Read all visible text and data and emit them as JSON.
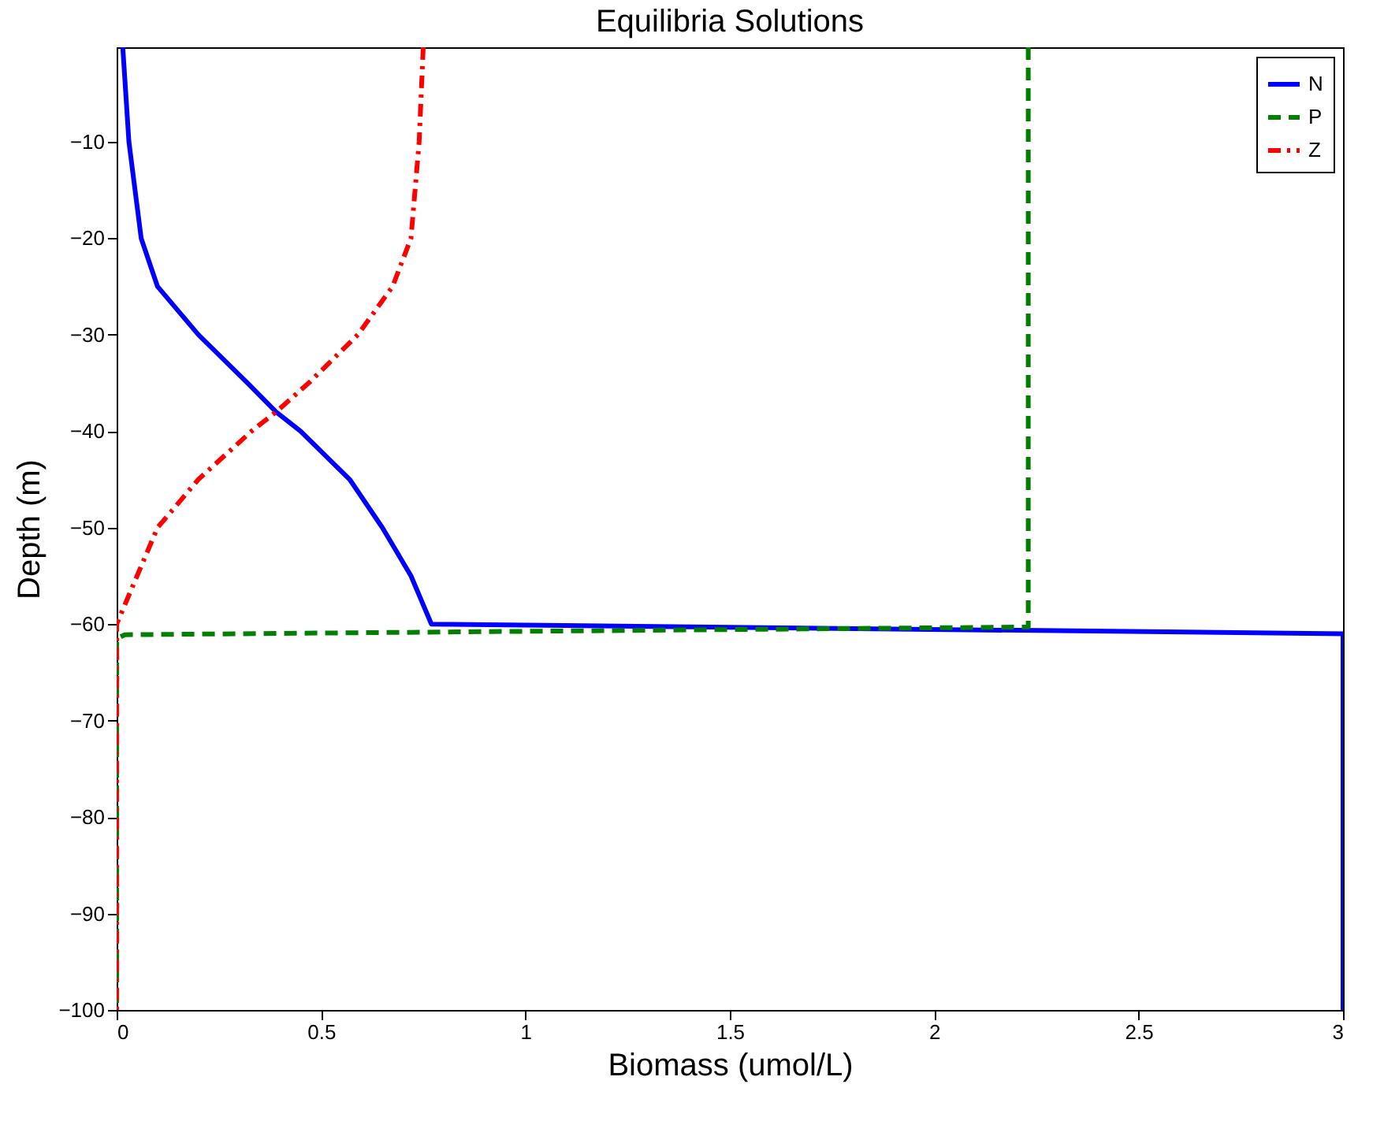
{
  "chart_data": {
    "type": "line",
    "title": "Equilibria Solutions",
    "xlabel": "Biomass (umol/L)",
    "ylabel": "Depth (m)",
    "xlim": [
      0,
      3
    ],
    "xticks": [
      0,
      0.5,
      1,
      1.5,
      2,
      2.5,
      3
    ],
    "ylim": [
      -100,
      -0.2
    ],
    "yticks": [
      -100,
      -90,
      -80,
      -70,
      -60,
      -50,
      -40,
      -30,
      -20,
      -10
    ],
    "grid": false,
    "legend": "top right",
    "marker": "none",
    "series": [
      {
        "name": "N",
        "color": "#0000ff",
        "line_style": "solid",
        "x": [
          0.015,
          0.03,
          0.06,
          0.1,
          0.2,
          0.32,
          0.39,
          0.45,
          0.57,
          0.65,
          0.72,
          0.77,
          3,
          3
        ],
        "values": [
          -0.2,
          -10,
          -20,
          -25,
          -30,
          -35,
          -38,
          -40,
          -45,
          -50,
          -55,
          -60,
          -61,
          -100
        ]
      },
      {
        "name": "P",
        "color": "#007f00",
        "line_style": "dashed",
        "x": [
          2.23,
          2.23,
          0.02,
          0.0,
          0.0
        ],
        "values": [
          -0.2,
          -60.3,
          -61.1,
          -61.5,
          -100
        ]
      },
      {
        "name": "Z",
        "color": "#ff0000",
        "line_style": "dashdot",
        "x": [
          0.75,
          0.74,
          0.72,
          0.675,
          0.59,
          0.47,
          0.39,
          0.33,
          0.2,
          0.1,
          0.05,
          0.01,
          0.0,
          0.0
        ],
        "values": [
          -0.2,
          -10,
          -20,
          -25,
          -30,
          -35,
          -38,
          -40,
          -45,
          -50,
          -55,
          -59,
          -60,
          -100
        ]
      }
    ]
  }
}
